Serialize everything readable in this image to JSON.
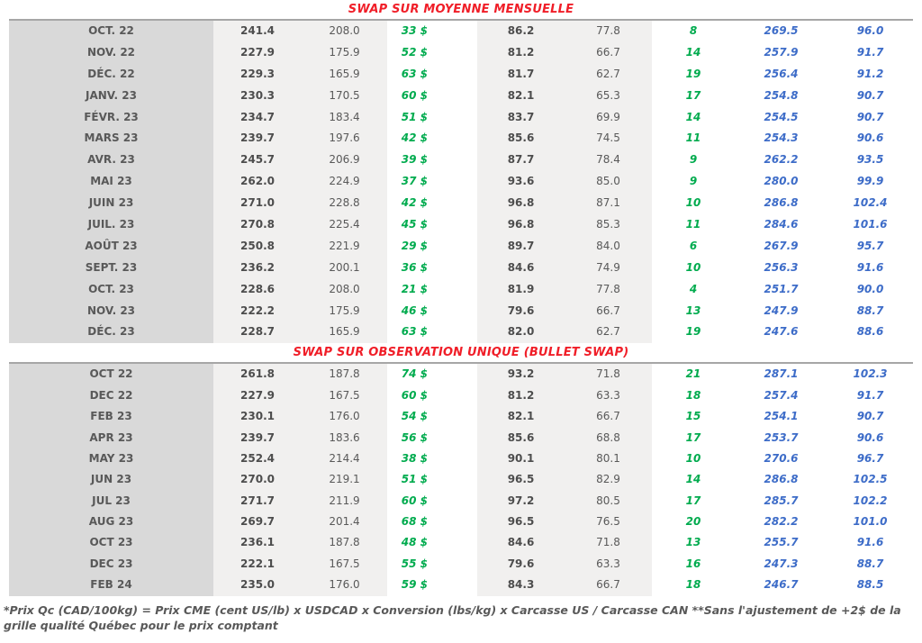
{
  "tables": [
    {
      "title": "SWAP SUR MOYENNE MENSUELLE",
      "rows": [
        [
          "OCT. 22",
          "241.4",
          "208.0",
          "33 $",
          "86.2",
          "77.8",
          "8",
          "269.5",
          "96.0"
        ],
        [
          "NOV. 22",
          "227.9",
          "175.9",
          "52 $",
          "81.2",
          "66.7",
          "14",
          "257.9",
          "91.7"
        ],
        [
          "DÉC. 22",
          "229.3",
          "165.9",
          "63 $",
          "81.7",
          "62.7",
          "19",
          "256.4",
          "91.2"
        ],
        [
          "JANV. 23",
          "230.3",
          "170.5",
          "60 $",
          "82.1",
          "65.3",
          "17",
          "254.8",
          "90.7"
        ],
        [
          "FÉVR. 23",
          "234.7",
          "183.4",
          "51 $",
          "83.7",
          "69.9",
          "14",
          "254.5",
          "90.7"
        ],
        [
          "MARS 23",
          "239.7",
          "197.6",
          "42 $",
          "85.6",
          "74.5",
          "11",
          "254.3",
          "90.6"
        ],
        [
          "AVR. 23",
          "245.7",
          "206.9",
          "39 $",
          "87.7",
          "78.4",
          "9",
          "262.2",
          "93.5"
        ],
        [
          "MAI 23",
          "262.0",
          "224.9",
          "37 $",
          "93.6",
          "85.0",
          "9",
          "280.0",
          "99.9"
        ],
        [
          "JUIN 23",
          "271.0",
          "228.8",
          "42 $",
          "96.8",
          "87.1",
          "10",
          "286.8",
          "102.4"
        ],
        [
          "JUIL. 23",
          "270.8",
          "225.4",
          "45 $",
          "96.8",
          "85.3",
          "11",
          "284.6",
          "101.6"
        ],
        [
          "AOÛT 23",
          "250.8",
          "221.9",
          "29 $",
          "89.7",
          "84.0",
          "6",
          "267.9",
          "95.7"
        ],
        [
          "SEPT. 23",
          "236.2",
          "200.1",
          "36 $",
          "84.6",
          "74.9",
          "10",
          "256.3",
          "91.6"
        ],
        [
          "OCT. 23",
          "228.6",
          "208.0",
          "21 $",
          "81.9",
          "77.8",
          "4",
          "251.7",
          "90.0"
        ],
        [
          "NOV. 23",
          "222.2",
          "175.9",
          "46 $",
          "79.6",
          "66.7",
          "13",
          "247.9",
          "88.7"
        ],
        [
          "DÉC. 23",
          "228.7",
          "165.9",
          "63 $",
          "82.0",
          "62.7",
          "19",
          "247.6",
          "88.6"
        ]
      ]
    },
    {
      "title": "SWAP SUR OBSERVATION UNIQUE (BULLET SWAP)",
      "rows": [
        [
          "OCT 22",
          "261.8",
          "187.8",
          "74 $",
          "93.2",
          "71.8",
          "21",
          "287.1",
          "102.3"
        ],
        [
          "DEC 22",
          "227.9",
          "167.5",
          "60 $",
          "81.2",
          "63.3",
          "18",
          "257.4",
          "91.7"
        ],
        [
          "FEB 23",
          "230.1",
          "176.0",
          "54 $",
          "82.1",
          "66.7",
          "15",
          "254.1",
          "90.7"
        ],
        [
          "APR 23",
          "239.7",
          "183.6",
          "56 $",
          "85.6",
          "68.8",
          "17",
          "253.7",
          "90.6"
        ],
        [
          "MAY 23",
          "252.4",
          "214.4",
          "38 $",
          "90.1",
          "80.1",
          "10",
          "270.6",
          "96.7"
        ],
        [
          "JUN 23",
          "270.0",
          "219.1",
          "51 $",
          "96.5",
          "82.9",
          "14",
          "286.8",
          "102.5"
        ],
        [
          "JUL 23",
          "271.7",
          "211.9",
          "60 $",
          "97.2",
          "80.5",
          "17",
          "285.7",
          "102.2"
        ],
        [
          "AUG 23",
          "269.7",
          "201.4",
          "68 $",
          "96.5",
          "76.5",
          "20",
          "282.2",
          "101.0"
        ],
        [
          "OCT 23",
          "236.1",
          "187.8",
          "48 $",
          "84.6",
          "71.8",
          "13",
          "255.7",
          "91.6"
        ],
        [
          "DEC 23",
          "222.1",
          "167.5",
          "55 $",
          "79.6",
          "63.3",
          "16",
          "247.3",
          "88.7"
        ],
        [
          "FEB 24",
          "235.0",
          "176.0",
          "59 $",
          "84.3",
          "66.7",
          "18",
          "246.7",
          "88.5"
        ]
      ]
    }
  ],
  "footnote": "*Prix Qc (CAD/100kg) = Prix CME (cent US/lb) x USDCAD x Conversion (lbs/kg) x Carcasse US / Carcasse CAN **Sans l'ajustement de +2$ de la grille qualité Québec pour le prix comptant",
  "colors": {
    "title_red": "#f01e28",
    "positive_green": "#00ab4e",
    "swap_blue": "#3d6cc8",
    "text_gray": "#595959",
    "month_column_bg": "#d9d9d9",
    "shaded_column_bg": "#f1f0ef"
  }
}
